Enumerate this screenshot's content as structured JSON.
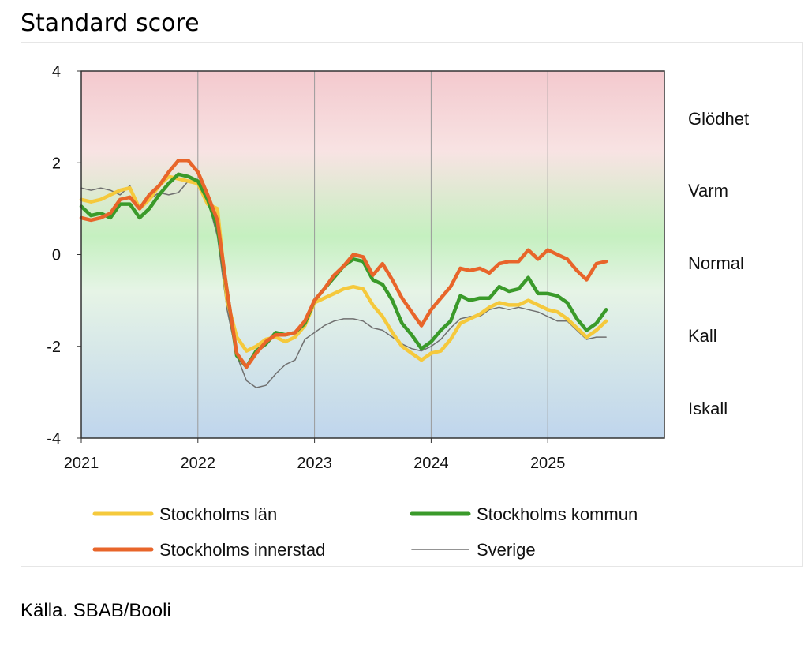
{
  "title": "Standard score",
  "source": "Källa. SBAB/Booli",
  "colors": {
    "lan": "#f5c93c",
    "kommun": "#3a9a2a",
    "innerstad": "#e8652a",
    "sverige": "#707070",
    "bg_hot": "#f3c9ce",
    "bg_normal": "#c5f0c0",
    "bg_cold": "#bfd5ec"
  },
  "zones": [
    "Glödhet",
    "Varm",
    "Normal",
    "Kall",
    "Iskall"
  ],
  "chart_data": {
    "type": "line",
    "title": "Standard score",
    "ylim": [
      -4,
      4
    ],
    "yticks": [
      "4",
      "2",
      "0",
      "-2",
      "-4"
    ],
    "xlim": [
      2021.0,
      2026.0
    ],
    "xticks": [
      "2021",
      "2022",
      "2023",
      "2024",
      "2025"
    ],
    "legend": [
      "Stockholms län",
      "Stockholms kommun",
      "Stockholms innerstad",
      "Sverige"
    ],
    "series": [
      {
        "name": "Stockholms län",
        "color": "#f5c93c",
        "x": [
          2021.0,
          2021.083,
          2021.167,
          2021.25,
          2021.333,
          2021.417,
          2021.5,
          2021.583,
          2021.667,
          2021.75,
          2021.833,
          2021.917,
          2022.0,
          2022.083,
          2022.167,
          2022.25,
          2022.333,
          2022.417,
          2022.5,
          2022.583,
          2022.667,
          2022.75,
          2022.833,
          2022.917,
          2023.0,
          2023.083,
          2023.167,
          2023.25,
          2023.333,
          2023.417,
          2023.5,
          2023.583,
          2023.667,
          2023.75,
          2023.833,
          2023.917,
          2024.0,
          2024.083,
          2024.167,
          2024.25,
          2024.333,
          2024.417,
          2024.5,
          2024.583,
          2024.667,
          2024.75,
          2024.833,
          2024.917,
          2025.0,
          2025.083,
          2025.167,
          2025.25,
          2025.333,
          2025.417,
          2025.5
        ],
        "values": [
          1.2,
          1.15,
          1.2,
          1.3,
          1.4,
          1.45,
          1.0,
          1.2,
          1.5,
          1.7,
          1.65,
          1.6,
          1.55,
          1.1,
          1.0,
          -1.0,
          -1.8,
          -2.1,
          -2.0,
          -1.85,
          -1.8,
          -1.9,
          -1.8,
          -1.55,
          -1.05,
          -0.95,
          -0.85,
          -0.75,
          -0.7,
          -0.75,
          -1.1,
          -1.35,
          -1.7,
          -2.0,
          -2.15,
          -2.3,
          -2.15,
          -2.1,
          -1.85,
          -1.5,
          -1.4,
          -1.3,
          -1.15,
          -1.05,
          -1.1,
          -1.1,
          -1.0,
          -1.1,
          -1.2,
          -1.25,
          -1.4,
          -1.6,
          -1.8,
          -1.65,
          -1.45
        ]
      },
      {
        "name": "Stockholms kommun",
        "color": "#3a9a2a",
        "x": [
          2021.0,
          2021.083,
          2021.167,
          2021.25,
          2021.333,
          2021.417,
          2021.5,
          2021.583,
          2021.667,
          2021.75,
          2021.833,
          2021.917,
          2022.0,
          2022.083,
          2022.167,
          2022.25,
          2022.333,
          2022.417,
          2022.5,
          2022.583,
          2022.667,
          2022.75,
          2022.833,
          2022.917,
          2023.0,
          2023.083,
          2023.167,
          2023.25,
          2023.333,
          2023.417,
          2023.5,
          2023.583,
          2023.667,
          2023.75,
          2023.833,
          2023.917,
          2024.0,
          2024.083,
          2024.167,
          2024.25,
          2024.333,
          2024.417,
          2024.5,
          2024.583,
          2024.667,
          2024.75,
          2024.833,
          2024.917,
          2025.0,
          2025.083,
          2025.167,
          2025.25,
          2025.333,
          2025.417,
          2025.5
        ],
        "values": [
          1.05,
          0.85,
          0.9,
          0.8,
          1.1,
          1.1,
          0.8,
          1.0,
          1.3,
          1.55,
          1.75,
          1.7,
          1.6,
          1.2,
          0.6,
          -0.8,
          -2.2,
          -2.45,
          -2.1,
          -1.95,
          -1.7,
          -1.75,
          -1.7,
          -1.5,
          -1.0,
          -0.75,
          -0.5,
          -0.25,
          -0.1,
          -0.15,
          -0.55,
          -0.65,
          -1.0,
          -1.5,
          -1.75,
          -2.05,
          -1.9,
          -1.65,
          -1.45,
          -0.9,
          -1.0,
          -0.95,
          -0.95,
          -0.7,
          -0.8,
          -0.75,
          -0.5,
          -0.85,
          -0.85,
          -0.9,
          -1.05,
          -1.4,
          -1.65,
          -1.5,
          -1.2
        ]
      },
      {
        "name": "Stockholms innerstad",
        "color": "#e8652a",
        "x": [
          2021.0,
          2021.083,
          2021.167,
          2021.25,
          2021.333,
          2021.417,
          2021.5,
          2021.583,
          2021.667,
          2021.75,
          2021.833,
          2021.917,
          2022.0,
          2022.083,
          2022.167,
          2022.25,
          2022.333,
          2022.417,
          2022.5,
          2022.583,
          2022.667,
          2022.75,
          2022.833,
          2022.917,
          2023.0,
          2023.083,
          2023.167,
          2023.25,
          2023.333,
          2023.417,
          2023.5,
          2023.583,
          2023.667,
          2023.75,
          2023.833,
          2023.917,
          2024.0,
          2024.083,
          2024.167,
          2024.25,
          2024.333,
          2024.417,
          2024.5,
          2024.583,
          2024.667,
          2024.75,
          2024.833,
          2024.917,
          2025.0,
          2025.083,
          2025.167,
          2025.25,
          2025.333,
          2025.417,
          2025.5
        ],
        "values": [
          0.8,
          0.75,
          0.8,
          0.9,
          1.2,
          1.25,
          1.0,
          1.3,
          1.5,
          1.8,
          2.05,
          2.05,
          1.8,
          1.3,
          0.75,
          -0.8,
          -2.15,
          -2.45,
          -2.15,
          -1.9,
          -1.75,
          -1.75,
          -1.7,
          -1.45,
          -1.0,
          -0.75,
          -0.45,
          -0.25,
          0.0,
          -0.05,
          -0.45,
          -0.2,
          -0.55,
          -0.95,
          -1.25,
          -1.55,
          -1.2,
          -0.95,
          -0.7,
          -0.3,
          -0.35,
          -0.3,
          -0.4,
          -0.2,
          -0.15,
          -0.15,
          0.1,
          -0.1,
          0.1,
          0.0,
          -0.1,
          -0.35,
          -0.55,
          -0.2,
          -0.15
        ]
      },
      {
        "name": "Sverige",
        "color": "#707070",
        "x": [
          2021.0,
          2021.083,
          2021.167,
          2021.25,
          2021.333,
          2021.417,
          2021.5,
          2021.583,
          2021.667,
          2021.75,
          2021.833,
          2021.917,
          2022.0,
          2022.083,
          2022.167,
          2022.25,
          2022.333,
          2022.417,
          2022.5,
          2022.583,
          2022.667,
          2022.75,
          2022.833,
          2022.917,
          2023.0,
          2023.083,
          2023.167,
          2023.25,
          2023.333,
          2023.417,
          2023.5,
          2023.583,
          2023.667,
          2023.75,
          2023.833,
          2023.917,
          2024.0,
          2024.083,
          2024.167,
          2024.25,
          2024.333,
          2024.417,
          2024.5,
          2024.583,
          2024.667,
          2024.75,
          2024.833,
          2024.917,
          2025.0,
          2025.083,
          2025.167,
          2025.25,
          2025.333,
          2025.417,
          2025.5
        ],
        "values": [
          1.45,
          1.4,
          1.45,
          1.4,
          1.3,
          1.5,
          1.0,
          1.2,
          1.35,
          1.3,
          1.35,
          1.6,
          1.6,
          1.2,
          0.4,
          -1.2,
          -2.2,
          -2.75,
          -2.9,
          -2.85,
          -2.6,
          -2.4,
          -2.3,
          -1.85,
          -1.7,
          -1.55,
          -1.45,
          -1.4,
          -1.4,
          -1.45,
          -1.6,
          -1.65,
          -1.8,
          -1.95,
          -2.05,
          -2.1,
          -2.0,
          -1.85,
          -1.6,
          -1.4,
          -1.35,
          -1.35,
          -1.2,
          -1.15,
          -1.2,
          -1.15,
          -1.2,
          -1.25,
          -1.35,
          -1.45,
          -1.45,
          -1.65,
          -1.85,
          -1.8,
          -1.8
        ]
      }
    ]
  }
}
